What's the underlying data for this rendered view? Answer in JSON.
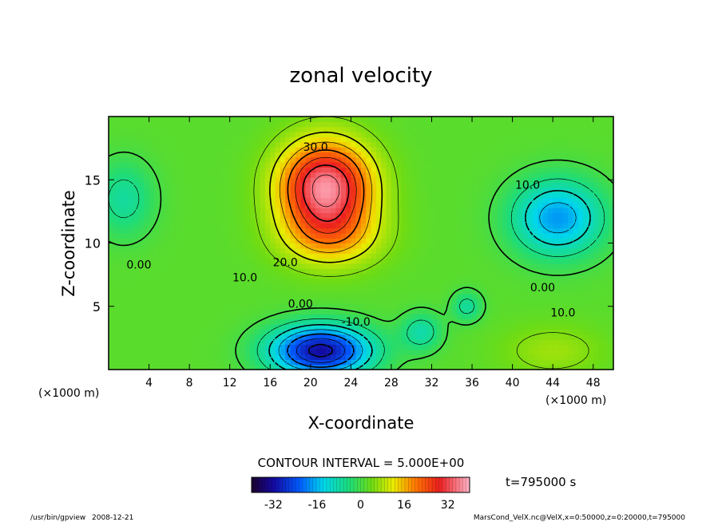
{
  "chart_data": {
    "type": "heatmap",
    "title": "zonal velocity",
    "xlabel": "X-coordinate",
    "ylabel": "Z-coordinate",
    "x_unit_label": "(×1000 m)",
    "y_unit_label": "(×1000 m)",
    "xlim": [
      0,
      50
    ],
    "ylim": [
      0,
      20
    ],
    "x_ticks": [
      4,
      8,
      12,
      16,
      20,
      24,
      28,
      32,
      36,
      40,
      44,
      48
    ],
    "y_ticks": [
      5,
      10,
      15
    ],
    "contour_interval_label": "CONTOUR INTERVAL = 5.000E+00",
    "contour_labels": [
      {
        "text": "30.0",
        "x": 20.5,
        "z": 17.6
      },
      {
        "text": "20.0",
        "x": 17.5,
        "z": 8.5
      },
      {
        "text": "10.0",
        "x": 13.5,
        "z": 7.3
      },
      {
        "text": "0.00",
        "x": 3.0,
        "z": 8.3
      },
      {
        "text": "0.00",
        "x": 19.0,
        "z": 5.2
      },
      {
        "text": "-10.0",
        "x": 24.5,
        "z": 3.8
      },
      {
        "text": "10.0",
        "x": 41.5,
        "z": 14.6
      },
      {
        "text": "0.00",
        "x": 43.0,
        "z": 6.5
      },
      {
        "text": "10.0",
        "x": 45.0,
        "z": 4.5
      }
    ],
    "colorbar": {
      "min": -40,
      "max": 40,
      "ticks": [
        -32,
        -16,
        0,
        16,
        32
      ]
    },
    "time_label": "t=795000 s",
    "field": {
      "base": 2,
      "blobs": [
        {
          "x": 21.5,
          "z": 14.5,
          "sx": 4.5,
          "sz": 3.5,
          "amp": 35
        },
        {
          "x": 22.0,
          "z": 10.5,
          "sx": 5.0,
          "sz": 2.5,
          "amp": 12
        },
        {
          "x": 21.0,
          "z": 1.5,
          "sx": 5.0,
          "sz": 2.0,
          "amp": -34
        },
        {
          "x": 44.5,
          "z": 12.0,
          "sx": 4.5,
          "sz": 3.0,
          "amp": -20
        },
        {
          "x": 1.5,
          "z": 13.5,
          "sx": 3.0,
          "sz": 3.0,
          "amp": -9
        },
        {
          "x": 35.5,
          "z": 5.0,
          "sx": 1.5,
          "sz": 1.2,
          "amp": -9
        },
        {
          "x": 31.0,
          "z": 3.0,
          "sx": 2.0,
          "sz": 1.5,
          "amp": -10
        },
        {
          "x": 44.0,
          "z": 1.5,
          "sx": 5.0,
          "sz": 2.0,
          "amp": 5
        }
      ]
    }
  },
  "footer": {
    "program": "/usr/bin/gpview",
    "date": "2008-12-21",
    "source": "MarsCond_VelX.nc@VelX,x=0:50000,z=0:20000,t=795000"
  }
}
